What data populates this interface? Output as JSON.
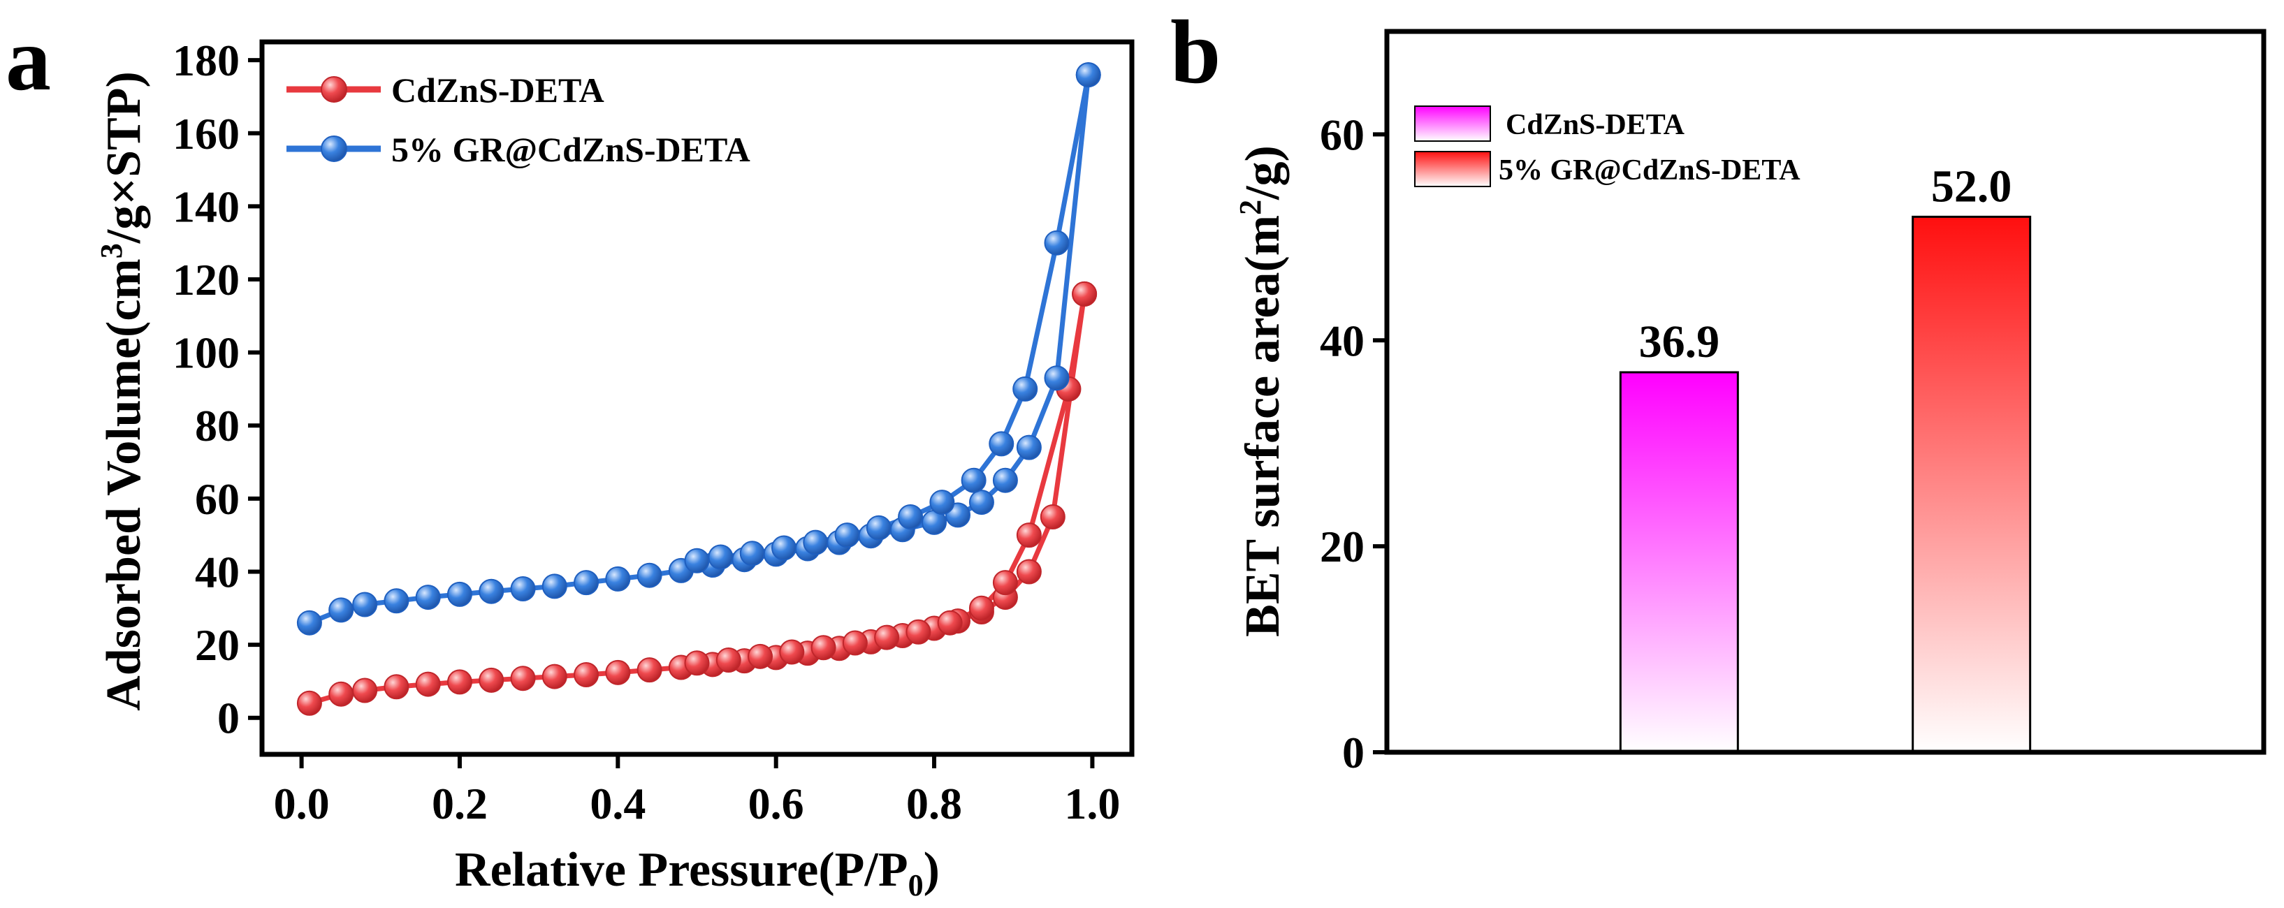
{
  "chart_data": [
    {
      "type": "line",
      "panel": "a",
      "xlabel": "Relative Pressure",
      "xlabel_unit": {
        "open": "(",
        "text": "P/P",
        "sub": "0",
        "close": ")"
      },
      "ylabel": "Adsorbed Volume",
      "ylabel_unit": {
        "open": "(",
        "pre": "cm",
        "sup": "3",
        "post": "/g×STP",
        "close": ")"
      },
      "xlim": [
        -0.05,
        1.05
      ],
      "ylim": [
        -10,
        185
      ],
      "xticks": [
        "0.0",
        "0.2",
        "0.4",
        "0.6",
        "0.8",
        "1.0"
      ],
      "yticks": [
        "0",
        "20",
        "40",
        "60",
        "80",
        "100",
        "120",
        "140",
        "160",
        "180"
      ],
      "legend_position": "top-left",
      "series": [
        {
          "name": "CdZnS-DETA",
          "color": "#e8393f",
          "adsorption": [
            [
              0.01,
              4
            ],
            [
              0.05,
              6.5
            ],
            [
              0.08,
              7.5
            ],
            [
              0.12,
              8.5
            ],
            [
              0.16,
              9.2
            ],
            [
              0.2,
              9.8
            ],
            [
              0.24,
              10.3
            ],
            [
              0.28,
              10.8
            ],
            [
              0.32,
              11.3
            ],
            [
              0.36,
              11.8
            ],
            [
              0.4,
              12.4
            ],
            [
              0.44,
              13.1
            ],
            [
              0.48,
              13.8
            ],
            [
              0.52,
              14.6
            ],
            [
              0.56,
              15.6
            ],
            [
              0.6,
              16.5
            ],
            [
              0.64,
              17.7
            ],
            [
              0.68,
              19
            ],
            [
              0.72,
              20.8
            ],
            [
              0.76,
              22.5
            ],
            [
              0.8,
              24.5
            ],
            [
              0.83,
              26.5
            ],
            [
              0.86,
              29
            ],
            [
              0.89,
              33
            ],
            [
              0.92,
              40
            ],
            [
              0.95,
              55
            ],
            [
              0.99,
              116
            ]
          ],
          "desorption": [
            [
              0.99,
              116
            ],
            [
              0.97,
              90
            ],
            [
              0.92,
              50
            ],
            [
              0.89,
              37
            ],
            [
              0.86,
              30
            ],
            [
              0.82,
              26
            ],
            [
              0.78,
              23.5
            ],
            [
              0.74,
              22
            ],
            [
              0.7,
              20.5
            ],
            [
              0.66,
              19.2
            ],
            [
              0.62,
              18
            ],
            [
              0.58,
              16.8
            ],
            [
              0.54,
              15.8
            ],
            [
              0.5,
              15
            ]
          ]
        },
        {
          "name": "5% GR@CdZnS-DETA",
          "color": "#2e74d6",
          "adsorption": [
            [
              0.01,
              26
            ],
            [
              0.05,
              29.5
            ],
            [
              0.08,
              31
            ],
            [
              0.12,
              32
            ],
            [
              0.16,
              33
            ],
            [
              0.2,
              33.8
            ],
            [
              0.24,
              34.6
            ],
            [
              0.28,
              35.3
            ],
            [
              0.32,
              36
            ],
            [
              0.36,
              37
            ],
            [
              0.4,
              38
            ],
            [
              0.44,
              39
            ],
            [
              0.48,
              40.3
            ],
            [
              0.52,
              41.8
            ],
            [
              0.56,
              43.3
            ],
            [
              0.6,
              44.8
            ],
            [
              0.64,
              46.3
            ],
            [
              0.68,
              48
            ],
            [
              0.72,
              49.8
            ],
            [
              0.76,
              51.5
            ],
            [
              0.8,
              53.5
            ],
            [
              0.83,
              55.5
            ],
            [
              0.86,
              59
            ],
            [
              0.89,
              65
            ],
            [
              0.92,
              74
            ],
            [
              0.955,
              93
            ],
            [
              0.995,
              176
            ]
          ],
          "desorption": [
            [
              0.995,
              176
            ],
            [
              0.955,
              130
            ],
            [
              0.915,
              90
            ],
            [
              0.885,
              75
            ],
            [
              0.85,
              65
            ],
            [
              0.81,
              59
            ],
            [
              0.77,
              55
            ],
            [
              0.73,
              52
            ],
            [
              0.69,
              50
            ],
            [
              0.65,
              48
            ],
            [
              0.61,
              46.5
            ],
            [
              0.57,
              45
            ],
            [
              0.53,
              44
            ],
            [
              0.5,
              43
            ]
          ]
        }
      ]
    },
    {
      "type": "bar",
      "panel": "b",
      "ylabel": "BET surface area",
      "ylabel_unit": {
        "open": "(",
        "pre": "m",
        "sup": "2",
        "post": "/g",
        "close": ")"
      },
      "ylim": [
        0,
        70
      ],
      "yticks": [
        "0",
        "20",
        "40",
        "60"
      ],
      "legend_position": "top-left",
      "categories": [
        "CdZnS-DETA",
        "5% GR@CdZnS-DETA"
      ],
      "values": [
        36.9,
        52.0
      ],
      "value_labels": [
        "36.9",
        "52.0"
      ],
      "colors": [
        "#ff00ff",
        "#ff0f0f"
      ]
    }
  ]
}
